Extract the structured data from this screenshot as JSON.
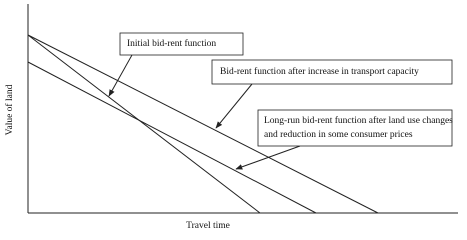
{
  "y_axis_label": "Value of land",
  "x_axis_label": "Travel time",
  "callouts": [
    {
      "lines": [
        "Initial bid-rent function"
      ]
    },
    {
      "lines": [
        "Bid-rent function after increase in transport capacity"
      ]
    },
    {
      "lines": [
        "Long-run bid-rent function after land use changes",
        "and reduction in some consumer prices"
      ]
    }
  ]
}
